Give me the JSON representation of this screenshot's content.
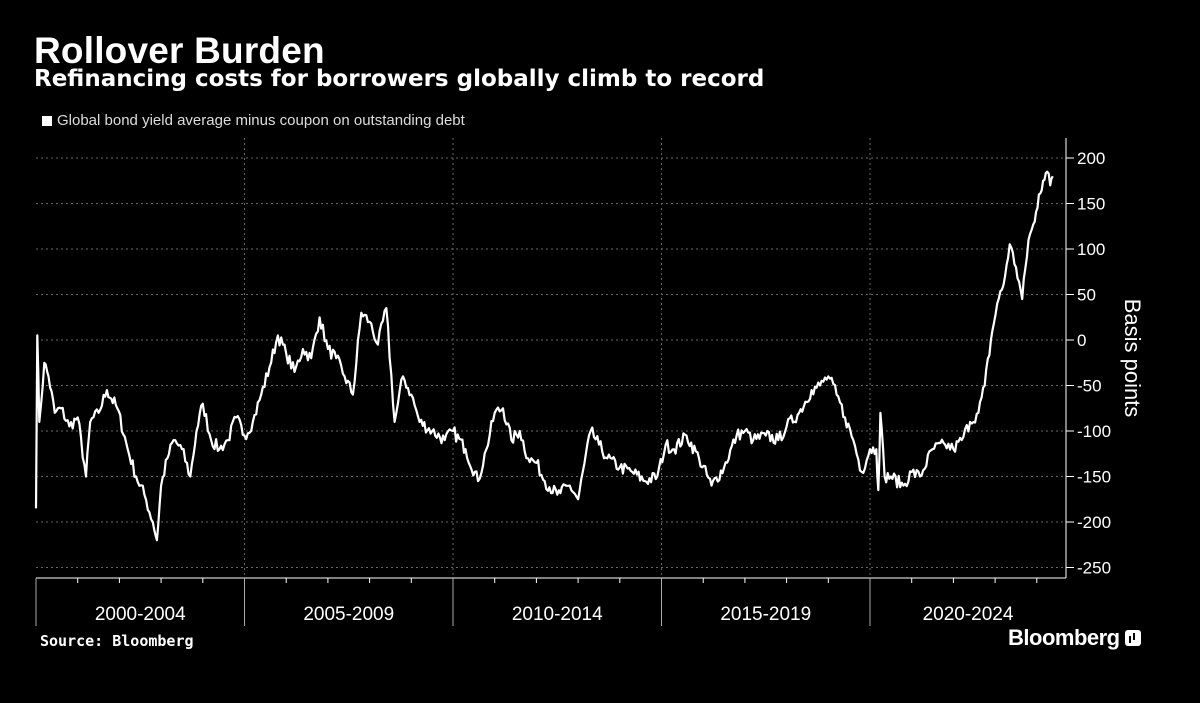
{
  "header": {
    "title": "Rollover Burden",
    "subtitle": "Refinancing costs for borrowers globally climb to record",
    "legend_label": "Global bond yield average minus coupon on outstanding debt"
  },
  "footer": {
    "source": "Source: Bloomberg",
    "brand": "Bloomberg"
  },
  "colors": {
    "background": "#000000",
    "line": "#ffffff",
    "grid": "#666666"
  },
  "chart_data": {
    "type": "line",
    "title": "Rollover Burden",
    "subtitle": "Refinancing costs for borrowers globally climb to record",
    "ylabel": "Basis points",
    "xlabel": "",
    "ylim": [
      -260,
      220
    ],
    "yticks": [
      200,
      150,
      100,
      50,
      0,
      -50,
      -100,
      -150,
      -200,
      -250
    ],
    "xlim": [
      2000.0,
      2024.7
    ],
    "period_labels": [
      {
        "label": "2000-2004",
        "start": 2000,
        "end": 2005
      },
      {
        "label": "2005-2009",
        "start": 2005,
        "end": 2010
      },
      {
        "label": "2010-2014",
        "start": 2010,
        "end": 2015
      },
      {
        "label": "2015-2019",
        "start": 2015,
        "end": 2020
      },
      {
        "label": "2020-2024",
        "start": 2020,
        "end": 2024.7
      }
    ],
    "series": [
      {
        "name": "Global bond yield average minus coupon on outstanding debt",
        "x": [
          2000.0,
          2000.03,
          2000.08,
          2000.2,
          2000.3,
          2000.45,
          2000.6,
          2000.8,
          2001.0,
          2001.2,
          2001.3,
          2001.5,
          2001.7,
          2001.95,
          2002.2,
          2002.4,
          2002.6,
          2002.8,
          2002.9,
          2003.0,
          2003.15,
          2003.3,
          2003.5,
          2003.7,
          2003.85,
          2004.0,
          2004.2,
          2004.4,
          2004.6,
          2004.8,
          2005.0,
          2005.2,
          2005.4,
          2005.6,
          2005.8,
          2006.0,
          2006.2,
          2006.4,
          2006.6,
          2006.8,
          2007.0,
          2007.2,
          2007.4,
          2007.6,
          2007.8,
          2008.0,
          2008.2,
          2008.4,
          2008.6,
          2008.8,
          2009.0,
          2009.2,
          2009.5,
          2009.8,
          2010.0,
          2010.3,
          2010.6,
          2010.8,
          2011.0,
          2011.2,
          2011.4,
          2011.6,
          2011.8,
          2012.0,
          2012.2,
          2012.5,
          2012.8,
          2013.0,
          2013.3,
          2013.5,
          2013.7,
          2014.0,
          2014.3,
          2014.6,
          2014.9,
          2015.1,
          2015.3,
          2015.6,
          2015.9,
          2016.2,
          2016.5,
          2016.8,
          2017.0,
          2017.2,
          2017.5,
          2017.8,
          2018.0,
          2018.3,
          2018.6,
          2018.8,
          2019.0,
          2019.2,
          2019.4,
          2019.6,
          2019.8,
          2020.0,
          2020.15,
          2020.2,
          2020.25,
          2020.35,
          2020.5,
          2020.8,
          2021.0,
          2021.2,
          2021.5,
          2021.8,
          2022.0,
          2022.2,
          2022.4,
          2022.6,
          2022.75,
          2022.9,
          2023.05,
          2023.2,
          2023.35,
          2023.5,
          2023.65,
          2023.8,
          2023.95,
          2024.05,
          2024.15,
          2024.25,
          2024.32,
          2024.38
        ],
        "values": [
          -185,
          5,
          -90,
          -25,
          -40,
          -80,
          -75,
          -95,
          -85,
          -150,
          -90,
          -80,
          -55,
          -75,
          -120,
          -150,
          -170,
          -200,
          -220,
          -160,
          -130,
          -110,
          -120,
          -150,
          -100,
          -70,
          -110,
          -120,
          -110,
          -85,
          -105,
          -90,
          -60,
          -30,
          5,
          -15,
          -35,
          -10,
          -20,
          25,
          -10,
          -20,
          -40,
          -60,
          30,
          20,
          -5,
          35,
          -90,
          -40,
          -60,
          -90,
          -100,
          -110,
          -100,
          -120,
          -155,
          -120,
          -80,
          -75,
          -110,
          -100,
          -130,
          -135,
          -155,
          -170,
          -160,
          -175,
          -100,
          -115,
          -130,
          -140,
          -145,
          -155,
          -150,
          -115,
          -120,
          -105,
          -130,
          -160,
          -140,
          -105,
          -100,
          -110,
          -105,
          -110,
          -95,
          -80,
          -55,
          -50,
          -40,
          -60,
          -85,
          -110,
          -145,
          -120,
          -120,
          -165,
          -80,
          -150,
          -150,
          -160,
          -145,
          -150,
          -120,
          -115,
          -120,
          -110,
          -90,
          -80,
          -50,
          0,
          40,
          60,
          105,
          80,
          45,
          110,
          130,
          160,
          175,
          185,
          170,
          180
        ]
      }
    ]
  }
}
